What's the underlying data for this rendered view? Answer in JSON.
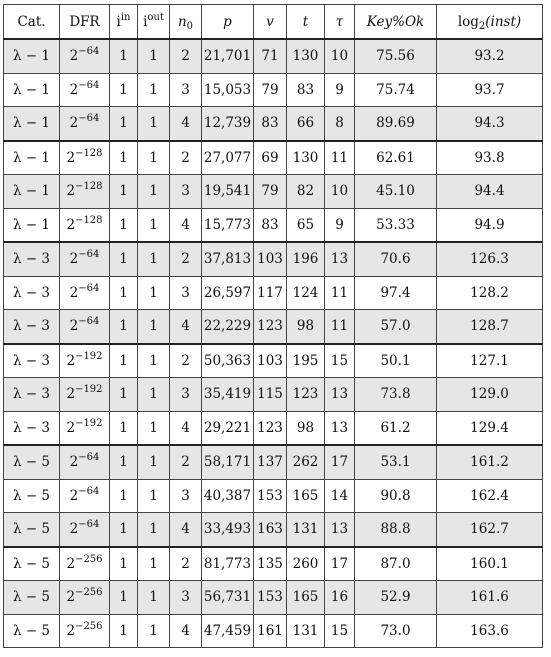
{
  "headers": {
    "cat": "Cat.",
    "dfr": "DFR",
    "i": "i",
    "in": "in",
    "out": "out",
    "n": "n",
    "n_sub": "0",
    "p": "p",
    "v": "v",
    "t": "t",
    "tau": "τ",
    "keyok": "Key%Ok",
    "log": "log",
    "log_sub": "2",
    "inst": "(inst)"
  },
  "rows": [
    {
      "cat": "λ − 1",
      "dfr_base": "2",
      "dfr_exp": "−64",
      "iin": "1",
      "iout": "1",
      "n0": "2",
      "p": "21,701",
      "v": "71",
      "t": "130",
      "tau": "10",
      "keyok": "75.56",
      "log": "93.2"
    },
    {
      "cat": "λ − 1",
      "dfr_base": "2",
      "dfr_exp": "−64",
      "iin": "1",
      "iout": "1",
      "n0": "3",
      "p": "15,053",
      "v": "79",
      "t": "83",
      "tau": "9",
      "keyok": "75.74",
      "log": "93.7"
    },
    {
      "cat": "λ − 1",
      "dfr_base": "2",
      "dfr_exp": "−64",
      "iin": "1",
      "iout": "1",
      "n0": "4",
      "p": "12,739",
      "v": "83",
      "t": "66",
      "tau": "8",
      "keyok": "89.69",
      "log": "94.3"
    },
    {
      "cat": "λ − 1",
      "dfr_base": "2",
      "dfr_exp": "−128",
      "iin": "1",
      "iout": "1",
      "n0": "2",
      "p": "27,077",
      "v": "69",
      "t": "130",
      "tau": "11",
      "keyok": "62.61",
      "log": "93.8"
    },
    {
      "cat": "λ − 1",
      "dfr_base": "2",
      "dfr_exp": "−128",
      "iin": "1",
      "iout": "1",
      "n0": "3",
      "p": "19,541",
      "v": "79",
      "t": "82",
      "tau": "10",
      "keyok": "45.10",
      "log": "94.4"
    },
    {
      "cat": "λ − 1",
      "dfr_base": "2",
      "dfr_exp": "−128",
      "iin": "1",
      "iout": "1",
      "n0": "4",
      "p": "15,773",
      "v": "83",
      "t": "65",
      "tau": "9",
      "keyok": "53.33",
      "log": "94.9"
    },
    {
      "cat": "λ − 3",
      "dfr_base": "2",
      "dfr_exp": "−64",
      "iin": "1",
      "iout": "1",
      "n0": "2",
      "p": "37,813",
      "v": "103",
      "t": "196",
      "tau": "13",
      "keyok": "70.6",
      "log": "126.3"
    },
    {
      "cat": "λ − 3",
      "dfr_base": "2",
      "dfr_exp": "−64",
      "iin": "1",
      "iout": "1",
      "n0": "3",
      "p": "26,597",
      "v": "117",
      "t": "124",
      "tau": "11",
      "keyok": "97.4",
      "log": "128.2"
    },
    {
      "cat": "λ − 3",
      "dfr_base": "2",
      "dfr_exp": "−64",
      "iin": "1",
      "iout": "1",
      "n0": "4",
      "p": "22,229",
      "v": "123",
      "t": "98",
      "tau": "11",
      "keyok": "57.0",
      "log": "128.7"
    },
    {
      "cat": "λ − 3",
      "dfr_base": "2",
      "dfr_exp": "−192",
      "iin": "1",
      "iout": "1",
      "n0": "2",
      "p": "50,363",
      "v": "103",
      "t": "195",
      "tau": "15",
      "keyok": "50.1",
      "log": "127.1"
    },
    {
      "cat": "λ − 3",
      "dfr_base": "2",
      "dfr_exp": "−192",
      "iin": "1",
      "iout": "1",
      "n0": "3",
      "p": "35,419",
      "v": "115",
      "t": "123",
      "tau": "13",
      "keyok": "73.8",
      "log": "129.0"
    },
    {
      "cat": "λ − 3",
      "dfr_base": "2",
      "dfr_exp": "−192",
      "iin": "1",
      "iout": "1",
      "n0": "4",
      "p": "29,221",
      "v": "123",
      "t": "98",
      "tau": "13",
      "keyok": "61.2",
      "log": "129.4"
    },
    {
      "cat": "λ − 5",
      "dfr_base": "2",
      "dfr_exp": "−64",
      "iin": "1",
      "iout": "1",
      "n0": "2",
      "p": "58,171",
      "v": "137",
      "t": "262",
      "tau": "17",
      "keyok": "53.1",
      "log": "161.2"
    },
    {
      "cat": "λ − 5",
      "dfr_base": "2",
      "dfr_exp": "−64",
      "iin": "1",
      "iout": "1",
      "n0": "3",
      "p": "40,387",
      "v": "153",
      "t": "165",
      "tau": "14",
      "keyok": "90.8",
      "log": "162.4"
    },
    {
      "cat": "λ − 5",
      "dfr_base": "2",
      "dfr_exp": "−64",
      "iin": "1",
      "iout": "1",
      "n0": "4",
      "p": "33,493",
      "v": "163",
      "t": "131",
      "tau": "13",
      "keyok": "88.8",
      "log": "162.7"
    },
    {
      "cat": "λ − 5",
      "dfr_base": "2",
      "dfr_exp": "−256",
      "iin": "1",
      "iout": "1",
      "n0": "2",
      "p": "81,773",
      "v": "135",
      "t": "260",
      "tau": "17",
      "keyok": "87.0",
      "log": "160.1"
    },
    {
      "cat": "λ − 5",
      "dfr_base": "2",
      "dfr_exp": "−256",
      "iin": "1",
      "iout": "1",
      "n0": "3",
      "p": "56,731",
      "v": "153",
      "t": "165",
      "tau": "16",
      "keyok": "52.9",
      "log": "161.6"
    },
    {
      "cat": "λ − 5",
      "dfr_base": "2",
      "dfr_exp": "−256",
      "iin": "1",
      "iout": "1",
      "n0": "4",
      "p": "47,459",
      "v": "161",
      "t": "131",
      "tau": "15",
      "keyok": "73.0",
      "log": "163.6"
    }
  ]
}
